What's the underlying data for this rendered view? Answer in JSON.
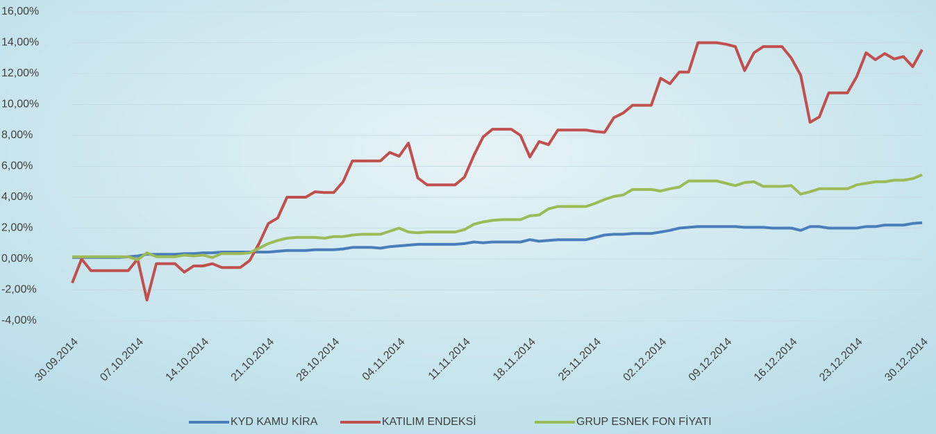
{
  "chart_data": {
    "type": "line",
    "categories": [
      "30.09.2014",
      null,
      null,
      null,
      null,
      null,
      null,
      "07.10.2014",
      null,
      null,
      null,
      null,
      null,
      null,
      "14.10.2014",
      null,
      null,
      null,
      null,
      null,
      null,
      "21.10.2014",
      null,
      null,
      null,
      null,
      null,
      null,
      "28.10.2014",
      null,
      null,
      null,
      null,
      null,
      null,
      "04.11.2014",
      null,
      null,
      null,
      null,
      null,
      null,
      "11.11.2014",
      null,
      null,
      null,
      null,
      null,
      null,
      "18.11.2014",
      null,
      null,
      null,
      null,
      null,
      null,
      "25.11.2014",
      null,
      null,
      null,
      null,
      null,
      null,
      "02.12.2014",
      null,
      null,
      null,
      null,
      null,
      null,
      "09.12.2014",
      null,
      null,
      null,
      null,
      null,
      null,
      "16.12.2014",
      null,
      null,
      null,
      null,
      null,
      null,
      "23.12.2014",
      null,
      null,
      null,
      null,
      null,
      null,
      "30.12.2014"
    ],
    "series": [
      {
        "name": "KYD KAMU KİRA",
        "color": "#4a7ebb",
        "values": [
          0.1,
          0.1,
          0.1,
          0.1,
          0.1,
          0.1,
          0.15,
          0.2,
          0.3,
          0.3,
          0.3,
          0.3,
          0.35,
          0.35,
          0.4,
          0.4,
          0.45,
          0.45,
          0.45,
          0.45,
          0.45,
          0.45,
          0.5,
          0.55,
          0.55,
          0.55,
          0.6,
          0.6,
          0.6,
          0.65,
          0.75,
          0.75,
          0.75,
          0.7,
          0.8,
          0.85,
          0.9,
          0.95,
          0.95,
          0.95,
          0.95,
          0.95,
          1.0,
          1.1,
          1.05,
          1.1,
          1.1,
          1.1,
          1.1,
          1.25,
          1.15,
          1.2,
          1.25,
          1.25,
          1.25,
          1.25,
          1.4,
          1.55,
          1.6,
          1.6,
          1.65,
          1.65,
          1.65,
          1.75,
          1.85,
          2.0,
          2.05,
          2.1,
          2.1,
          2.1,
          2.1,
          2.1,
          2.05,
          2.05,
          2.05,
          2.0,
          2.0,
          2.0,
          1.85,
          2.1,
          2.1,
          2.0,
          2.0,
          2.0,
          2.0,
          2.1,
          2.1,
          2.2,
          2.2,
          2.2,
          2.3,
          2.35
        ]
      },
      {
        "name": "KATILIM ENDEKSİ",
        "color": "#c0504d",
        "values": [
          -1.55,
          0.0,
          -0.75,
          -0.75,
          -0.75,
          -0.75,
          -0.75,
          0.0,
          -2.65,
          -0.3,
          -0.3,
          -0.3,
          -0.85,
          -0.45,
          -0.45,
          -0.3,
          -0.55,
          -0.55,
          -0.55,
          -0.1,
          1.0,
          2.3,
          2.65,
          4.0,
          4.0,
          4.0,
          4.35,
          4.3,
          4.3,
          5.0,
          6.35,
          6.35,
          6.35,
          6.35,
          6.9,
          6.65,
          7.5,
          5.25,
          4.8,
          4.8,
          4.8,
          4.8,
          5.3,
          6.7,
          7.9,
          8.4,
          8.4,
          8.4,
          8.0,
          6.6,
          7.6,
          7.4,
          8.35,
          8.35,
          8.35,
          8.35,
          8.25,
          8.2,
          9.15,
          9.45,
          9.95,
          9.95,
          9.95,
          11.7,
          11.35,
          12.1,
          12.1,
          14.0,
          14.0,
          14.0,
          13.9,
          13.75,
          12.2,
          13.35,
          13.75,
          13.75,
          13.75,
          13.0,
          11.9,
          8.85,
          9.2,
          10.75,
          10.75,
          10.75,
          11.8,
          13.35,
          12.9,
          13.3,
          12.95,
          13.1,
          12.45,
          13.55
        ]
      },
      {
        "name": "GRUP ESNEK FON FİYATI",
        "color": "#9bbb59",
        "values": [
          0.15,
          0.15,
          0.15,
          0.15,
          0.15,
          0.15,
          0.15,
          -0.05,
          0.4,
          0.15,
          0.15,
          0.15,
          0.25,
          0.2,
          0.25,
          0.1,
          0.35,
          0.35,
          0.35,
          0.4,
          0.7,
          1.0,
          1.2,
          1.35,
          1.4,
          1.4,
          1.4,
          1.35,
          1.45,
          1.45,
          1.55,
          1.6,
          1.6,
          1.6,
          1.8,
          2.0,
          1.75,
          1.7,
          1.75,
          1.75,
          1.75,
          1.75,
          1.9,
          2.25,
          2.4,
          2.5,
          2.55,
          2.55,
          2.55,
          2.8,
          2.85,
          3.25,
          3.4,
          3.4,
          3.4,
          3.4,
          3.6,
          3.85,
          4.05,
          4.15,
          4.5,
          4.5,
          4.5,
          4.4,
          4.55,
          4.65,
          5.05,
          5.05,
          5.05,
          5.05,
          4.9,
          4.75,
          4.95,
          5.0,
          4.7,
          4.7,
          4.7,
          4.75,
          4.2,
          4.35,
          4.55,
          4.55,
          4.55,
          4.55,
          4.8,
          4.9,
          5.0,
          5.0,
          5.1,
          5.1,
          5.2,
          5.45
        ]
      }
    ],
    "ylim": [
      -4,
      16
    ],
    "yticks": [
      {
        "value": -4,
        "label": "-4,00%"
      },
      {
        "value": -2,
        "label": "-2,00%"
      },
      {
        "value": 0,
        "label": "0,00%"
      },
      {
        "value": 2,
        "label": "2,00%"
      },
      {
        "value": 4,
        "label": "4,00%"
      },
      {
        "value": 6,
        "label": "6,00%"
      },
      {
        "value": 8,
        "label": "8,00%"
      },
      {
        "value": 10,
        "label": "10,00%"
      },
      {
        "value": 12,
        "label": "12,00%"
      },
      {
        "value": 14,
        "label": "14,00%"
      },
      {
        "value": 16,
        "label": "16,00%"
      }
    ],
    "grid": true,
    "legend": "bottom"
  }
}
